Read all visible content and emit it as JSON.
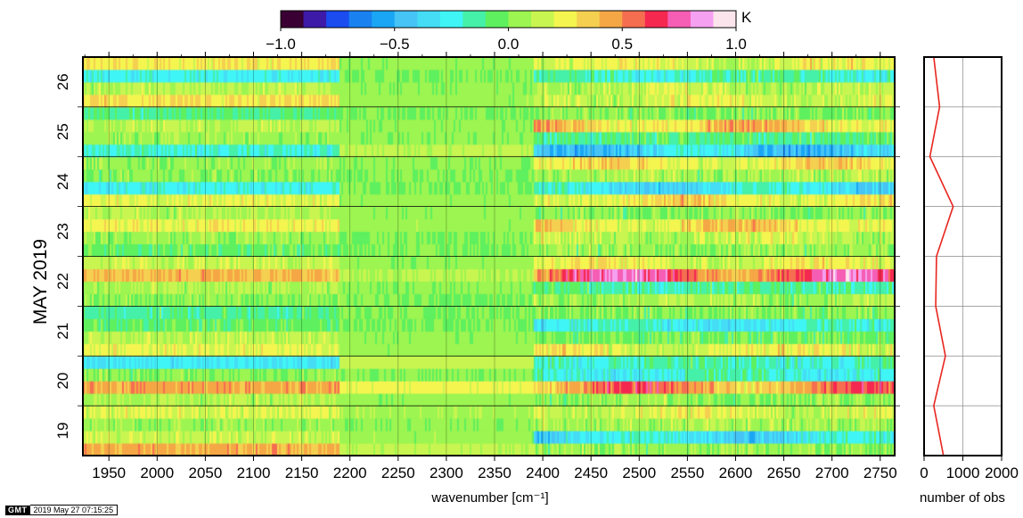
{
  "chart_data": [
    {
      "type": "heatmap",
      "xlabel": "wavenumber [cm⁻¹]",
      "ylabel": "MAY 2019",
      "xlim": [
        1923,
        2765
      ],
      "ylim_days": [
        18.5,
        26.5
      ],
      "x_ticks": [
        1950,
        2000,
        2050,
        2100,
        2150,
        2200,
        2250,
        2300,
        2350,
        2400,
        2450,
        2500,
        2550,
        2600,
        2650,
        2700,
        2750
      ],
      "y_ticks": [
        19,
        20,
        21,
        22,
        23,
        24,
        25,
        26
      ],
      "grid": true,
      "colorbar": {
        "unit": "K",
        "range": [
          -1.0,
          1.0
        ],
        "tick_labels": [
          "−1.0",
          "−0.5",
          "0.0",
          "0.5",
          "1.0"
        ],
        "tick_values": [
          -1.0,
          -0.5,
          0.0,
          0.5,
          1.0
        ],
        "colors": [
          "#3a0033",
          "#3d1aa8",
          "#1a4cf0",
          "#1a82f0",
          "#1aa6f5",
          "#45c4f5",
          "#45ddf5",
          "#3ff5f5",
          "#45f0a8",
          "#5ef05e",
          "#9cf550",
          "#c8f550",
          "#f5f550",
          "#f5d050",
          "#f5a745",
          "#f56e50",
          "#f52850",
          "#f55eb4",
          "#f5a0f0",
          "#fce4ec"
        ]
      },
      "time_step_days": 0.25,
      "band_regions": [
        {
          "name": "left",
          "x_range": [
            1923,
            2190
          ]
        },
        {
          "name": "middle",
          "x_range": [
            2190,
            2390
          ]
        },
        {
          "name": "right",
          "x_range": [
            2390,
            2765
          ]
        }
      ],
      "rows_mean_K": [
        {
          "t": 18.625,
          "left": 0.42,
          "middle": 0.12,
          "right": 0.06
        },
        {
          "t": 18.875,
          "left": 0.15,
          "middle": 0.05,
          "right": -0.38
        },
        {
          "t": 19.125,
          "left": 0.05,
          "middle": 0.02,
          "right": 0.1
        },
        {
          "t": 19.375,
          "left": 0.2,
          "middle": 0.08,
          "right": 0.22
        },
        {
          "t": 19.625,
          "left": 0.1,
          "middle": 0.04,
          "right": 0.05
        },
        {
          "t": 19.875,
          "left": 0.45,
          "middle": 0.22,
          "right": 0.55
        },
        {
          "t": 20.125,
          "left": 0.02,
          "middle": 0.01,
          "right": -0.25
        },
        {
          "t": 20.375,
          "left": -0.3,
          "middle": 0.15,
          "right": -0.2
        },
        {
          "t": 20.625,
          "left": 0.22,
          "middle": 0.05,
          "right": 0.25
        },
        {
          "t": 20.875,
          "left": 0.12,
          "middle": 0.03,
          "right": -0.02
        },
        {
          "t": 21.125,
          "left": -0.05,
          "middle": 0.0,
          "right": -0.3
        },
        {
          "t": 21.375,
          "left": -0.12,
          "middle": 0.0,
          "right": 0.02
        },
        {
          "t": 21.625,
          "left": 0.02,
          "middle": 0.0,
          "right": 0.1
        },
        {
          "t": 21.875,
          "left": 0.08,
          "middle": 0.02,
          "right": -0.15
        },
        {
          "t": 22.125,
          "left": 0.4,
          "middle": 0.1,
          "right": 0.72
        },
        {
          "t": 22.375,
          "left": 0.15,
          "middle": 0.03,
          "right": 0.25
        },
        {
          "t": 22.625,
          "left": -0.05,
          "middle": 0.0,
          "right": 0.05
        },
        {
          "t": 22.875,
          "left": 0.05,
          "middle": 0.0,
          "right": 0.15
        },
        {
          "t": 23.125,
          "left": 0.25,
          "middle": 0.05,
          "right": 0.35
        },
        {
          "t": 23.375,
          "left": 0.1,
          "middle": 0.03,
          "right": 0.02
        },
        {
          "t": 23.625,
          "left": 0.22,
          "middle": 0.04,
          "right": 0.3
        },
        {
          "t": 23.875,
          "left": -0.25,
          "middle": 0.0,
          "right": -0.35
        },
        {
          "t": 24.125,
          "left": 0.02,
          "middle": 0.0,
          "right": 0.1
        },
        {
          "t": 24.375,
          "left": 0.05,
          "middle": 0.02,
          "right": 0.3
        },
        {
          "t": 24.625,
          "left": -0.2,
          "middle": 0.12,
          "right": -0.45
        },
        {
          "t": 24.875,
          "left": 0.05,
          "middle": 0.02,
          "right": -0.1
        },
        {
          "t": 25.125,
          "left": 0.12,
          "middle": 0.03,
          "right": 0.4
        },
        {
          "t": 25.375,
          "left": -0.1,
          "middle": 0.0,
          "right": 0.02
        },
        {
          "t": 25.625,
          "left": 0.3,
          "middle": 0.04,
          "right": 0.2
        },
        {
          "t": 25.875,
          "left": 0.12,
          "middle": 0.02,
          "right": 0.15
        },
        {
          "t": 26.125,
          "left": -0.25,
          "middle": 0.0,
          "right": -0.2
        },
        {
          "t": 26.375,
          "left": 0.28,
          "middle": 0.03,
          "right": 0.22
        }
      ]
    },
    {
      "type": "line",
      "xlabel": "number of obs",
      "xlim": [
        0,
        2000
      ],
      "x_ticks": [
        0,
        1000,
        2000
      ],
      "series": [
        {
          "color": "#e8251f",
          "x": [
            500,
            250,
            550,
            300,
            320,
            750,
            150,
            400,
            250
          ],
          "y": [
            18.5,
            19.5,
            20.5,
            21.5,
            22.5,
            23.5,
            24.5,
            25.5,
            26.5
          ]
        }
      ]
    }
  ],
  "footer": {
    "logo": "GMT",
    "timestamp": "2019 May 27 07:15:25"
  }
}
